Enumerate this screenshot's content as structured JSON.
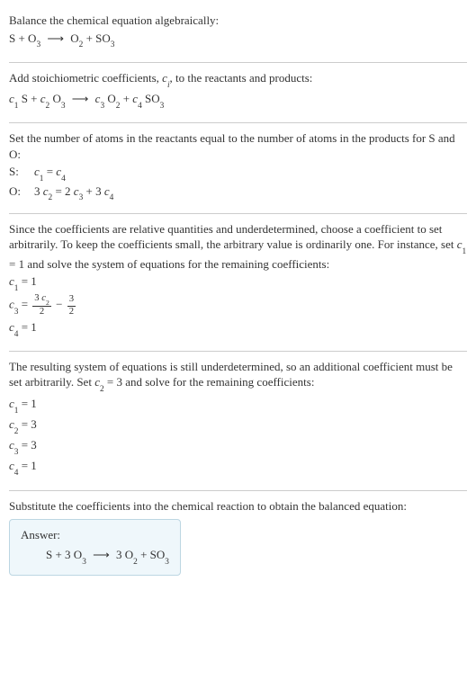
{
  "text_color": "#333333",
  "background_color": "#ffffff",
  "divider_color": "#cccccc",
  "font_family": "Georgia, 'Times New Roman', serif",
  "base_font_size": 13,
  "s1": {
    "title": "Balance the chemical equation algebraically:",
    "eqn_html": "S + O<sub>3</sub> <span class='arrow'>⟶</span> O<sub>2</sub> + SO<sub>3</sub>"
  },
  "s2": {
    "text_html": "Add stoichiometric coefficients, <i>c<sub>i</sub></i>, to the reactants and products:",
    "eqn_html": "<i>c</i><sub>1</sub> S + <i>c</i><sub>2</sub> O<sub>3</sub> <span class='arrow'>⟶</span> <i>c</i><sub>3</sub> O<sub>2</sub> + <i>c</i><sub>4</sub> SO<sub>3</sub>"
  },
  "s3": {
    "text": "Set the number of atoms in the reactants equal to the number of atoms in the products for S and O:",
    "rows": [
      {
        "label": "S:",
        "eqn_html": "<i>c</i><sub>1</sub> = <i>c</i><sub>4</sub>"
      },
      {
        "label": "O:",
        "eqn_html": "3 <i>c</i><sub>2</sub> = 2 <i>c</i><sub>3</sub> + 3 <i>c</i><sub>4</sub>"
      }
    ]
  },
  "s4": {
    "text_html": "Since the coefficients are relative quantities and underdetermined, choose a coefficient to set arbitrarily. To keep the coefficients small, the arbitrary value is ordinarily one. For instance, set <i>c</i><sub>1</sub> = 1 and solve the system of equations for the remaining coefficients:",
    "lines_html": [
      "<i>c</i><sub>1</sub> = 1",
      "<i>c</i><sub>3</sub> = <span class='frac'><span class='num'>3 <i>c</i><sub>2</sub></span><span class='den'>2</span></span> − <span class='frac'><span class='num'>3</span><span class='den'>2</span></span>",
      "<i>c</i><sub>4</sub> = 1"
    ]
  },
  "s5": {
    "text_html": "The resulting system of equations is still underdetermined, so an additional coefficient must be set arbitrarily. Set <i>c</i><sub>2</sub> = 3 and solve for the remaining coefficients:",
    "lines_html": [
      "<i>c</i><sub>1</sub> = 1",
      "<i>c</i><sub>2</sub> = 3",
      "<i>c</i><sub>3</sub> = 3",
      "<i>c</i><sub>4</sub> = 1"
    ]
  },
  "s6": {
    "text": "Substitute the coefficients into the chemical reaction to obtain the balanced equation:"
  },
  "answer": {
    "box_bg": "#eff7fb",
    "box_border": "#bcd6e2",
    "label": "Answer:",
    "eqn_html": "S + 3 O<sub>3</sub> <span class='arrow'>⟶</span> 3 O<sub>2</sub> + SO<sub>3</sub>"
  }
}
